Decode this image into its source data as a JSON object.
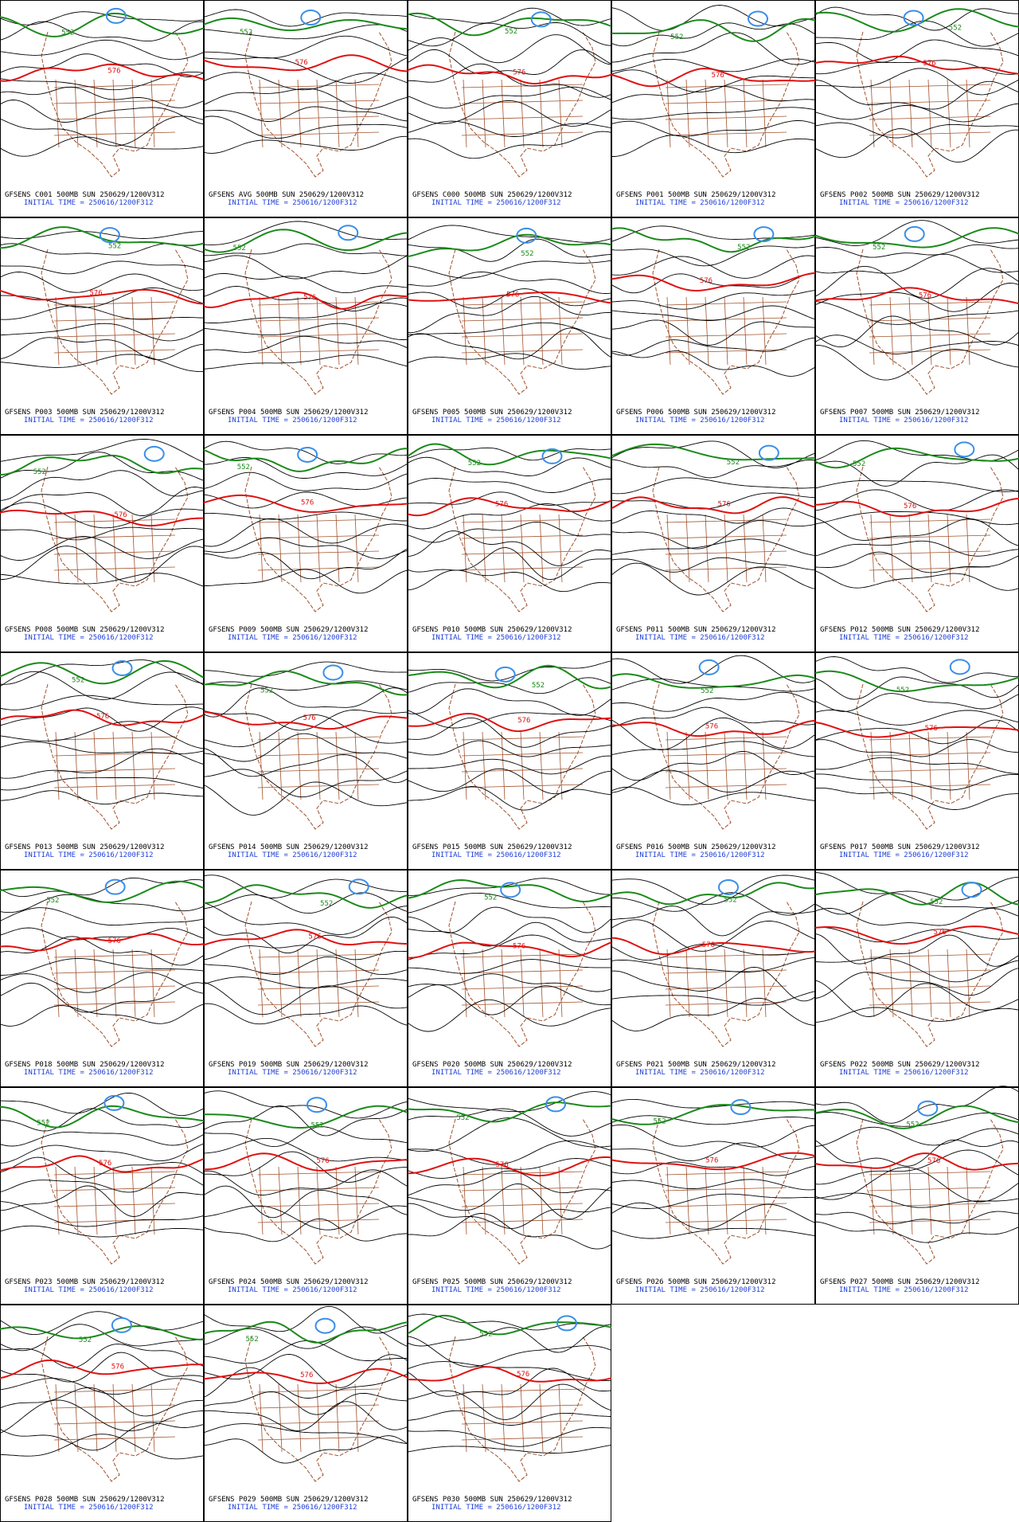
{
  "panels": [
    {
      "title": "GFSENS C001 500MB SUN 250629/1200V312",
      "init": "INITIAL TIME = 250616/1200F312",
      "contours": [
        "576",
        "552"
      ]
    },
    {
      "title": "GFSENS AVG 500MB SUN 250629/1200V312",
      "init": "INITIAL TIME = 250616/1200F312",
      "contours": [
        "576",
        "552"
      ]
    },
    {
      "title": "GFSENS C000 500MB SUN 250629/1200V312",
      "init": "INITIAL TIME = 250616/1200F312",
      "contours": [
        "576",
        "552"
      ]
    },
    {
      "title": "GFSENS P001 500MB SUN 250629/1200V312",
      "init": "INITIAL TIME = 250616/1200F312",
      "contours": [
        "576",
        "552"
      ]
    },
    {
      "title": "GFSENS P002 500MB SUN 250629/1200V312",
      "init": "INITIAL TIME = 250616/1200F312",
      "contours": [
        "576",
        "552"
      ]
    },
    {
      "title": "GFSENS P003 500MB SUN 250629/1200V312",
      "init": "INITIAL TIME = 250616/1200F312",
      "contours": [
        "576",
        "552"
      ]
    },
    {
      "title": "GFSENS P004 500MB SUN 250629/1200V312",
      "init": "INITIAL TIME = 250616/1200F312",
      "contours": [
        "576",
        "552"
      ]
    },
    {
      "title": "GFSENS P005 500MB SUN 250629/1200V312",
      "init": "INITIAL TIME = 250616/1200F312",
      "contours": [
        "576",
        "552"
      ]
    },
    {
      "title": "GFSENS P006 500MB SUN 250629/1200V312",
      "init": "INITIAL TIME = 250616/1200F312",
      "contours": [
        "576",
        "552"
      ]
    },
    {
      "title": "GFSENS P007 500MB SUN 250629/1200V312",
      "init": "INITIAL TIME = 250616/1200F312",
      "contours": [
        "576",
        "552"
      ]
    },
    {
      "title": "GFSENS P008 500MB SUN 250629/1200V312",
      "init": "INITIAL TIME = 250616/1200F312",
      "contours": [
        "576",
        "552"
      ]
    },
    {
      "title": "GFSENS P009 500MB SUN 250629/1200V312",
      "init": "INITIAL TIME = 250616/1200F312",
      "contours": [
        "576",
        "552"
      ]
    },
    {
      "title": "GFSENS P010 500MB SUN 250629/1200V312",
      "init": "INITIAL TIME = 250616/1200F312",
      "contours": [
        "576",
        "552"
      ]
    },
    {
      "title": "GFSENS P011 500MB SUN 250629/1200V312",
      "init": "INITIAL TIME = 250616/1200F312",
      "contours": [
        "576",
        "552"
      ]
    },
    {
      "title": "GFSENS P012 500MB SUN 250629/1200V312",
      "init": "INITIAL TIME = 250616/1200F312",
      "contours": [
        "576",
        "552"
      ]
    },
    {
      "title": "GFSENS P013 500MB SUN 250629/1200V312",
      "init": "INITIAL TIME = 250616/1200F312",
      "contours": [
        "576",
        "552"
      ]
    },
    {
      "title": "GFSENS P014 500MB SUN 250629/1200V312",
      "init": "INITIAL TIME = 250616/1200F312",
      "contours": [
        "576",
        "552"
      ]
    },
    {
      "title": "GFSENS P015 500MB SUN 250629/1200V312",
      "init": "INITIAL TIME = 250616/1200F312",
      "contours": [
        "576",
        "552"
      ]
    },
    {
      "title": "GFSENS P016 500MB SUN 250629/1200V312",
      "init": "INITIAL TIME = 250616/1200F312",
      "contours": [
        "576",
        "552"
      ]
    },
    {
      "title": "GFSENS P017 500MB SUN 250629/1200V312",
      "init": "INITIAL TIME = 250616/1200F312",
      "contours": [
        "576",
        "552"
      ]
    },
    {
      "title": "GFSENS P018 500MB SUN 250629/1200V312",
      "init": "INITIAL TIME = 250616/1200F312",
      "contours": [
        "576",
        "552"
      ]
    },
    {
      "title": "GFSENS P019 500MB SUN 250629/1200V312",
      "init": "INITIAL TIME = 250616/1200F312",
      "contours": [
        "576",
        "552"
      ]
    },
    {
      "title": "GFSENS P020 500MB SUN 250629/1200V312",
      "init": "INITIAL TIME = 250616/1200F312",
      "contours": [
        "576",
        "552"
      ]
    },
    {
      "title": "GFSENS P021 500MB SUN 250629/1200V312",
      "init": "INITIAL TIME = 250616/1200F312",
      "contours": [
        "576",
        "552"
      ]
    },
    {
      "title": "GFSENS P022 500MB SUN 250629/1200V312",
      "init": "INITIAL TIME = 250616/1200F312",
      "contours": [
        "576",
        "552"
      ]
    },
    {
      "title": "GFSENS P023 500MB SUN 250629/1200V312",
      "init": "INITIAL TIME = 250616/1200F312",
      "contours": [
        "576",
        "552"
      ]
    },
    {
      "title": "GFSENS P024 500MB SUN 250629/1200V312",
      "init": "INITIAL TIME = 250616/1200F312",
      "contours": [
        "576",
        "552"
      ]
    },
    {
      "title": "GFSENS P025 500MB SUN 250629/1200V312",
      "init": "INITIAL TIME = 250616/1200F312",
      "contours": [
        "576",
        "552"
      ]
    },
    {
      "title": "GFSENS P026 500MB SUN 250629/1200V312",
      "init": "INITIAL TIME = 250616/1200F312",
      "contours": [
        "576",
        "552"
      ]
    },
    {
      "title": "GFSENS P027 500MB SUN 250629/1200V312",
      "init": "INITIAL TIME = 250616/1200F312",
      "contours": [
        "576",
        "552"
      ]
    },
    {
      "title": "GFSENS P028 500MB SUN 250629/1200V312",
      "init": "INITIAL TIME = 250616/1200F312",
      "contours": [
        "576",
        "552"
      ]
    },
    {
      "title": "GFSENS P029 500MB SUN 250629/1200V312",
      "init": "INITIAL TIME = 250616/1200F312",
      "contours": [
        "576",
        "552"
      ]
    },
    {
      "title": "GFSENS P030 500MB SUN 250629/1200V312",
      "init": "INITIAL TIME = 250616/1200F312",
      "contours": [
        "576",
        "552"
      ]
    }
  ]
}
